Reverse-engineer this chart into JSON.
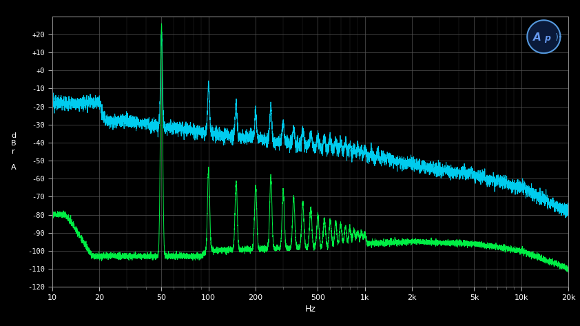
{
  "background_color": "#000000",
  "plot_bg_color": "#000000",
  "grid_color": "#555555",
  "xlabel": "Hz",
  "ylabel": "d\nB\nr\n\nA",
  "xlim_log": [
    10,
    20000
  ],
  "ylim": [
    -120,
    30
  ],
  "yticks": [
    20,
    10,
    0,
    -10,
    -20,
    -30,
    -40,
    -50,
    -60,
    -70,
    -80,
    -90,
    -100,
    -110,
    -120
  ],
  "ytick_labels": [
    "+20",
    "+10",
    "+0",
    "-10",
    "-20",
    "-30",
    "-40",
    "-50",
    "-60",
    "-70",
    "-80",
    "-90",
    "-100",
    "-110",
    "-120"
  ],
  "xtick_positions": [
    10,
    20,
    50,
    100,
    200,
    500,
    1000,
    2000,
    5000,
    10000,
    20000
  ],
  "xtick_labels": [
    "10",
    "20",
    "50",
    "100",
    "200",
    "500",
    "1k",
    "2k",
    "5k",
    "10k",
    "20k"
  ],
  "cyan_color": "#00CCEE",
  "green_color": "#00EE44",
  "figsize": [
    8.42,
    4.73
  ],
  "dpi": 100
}
